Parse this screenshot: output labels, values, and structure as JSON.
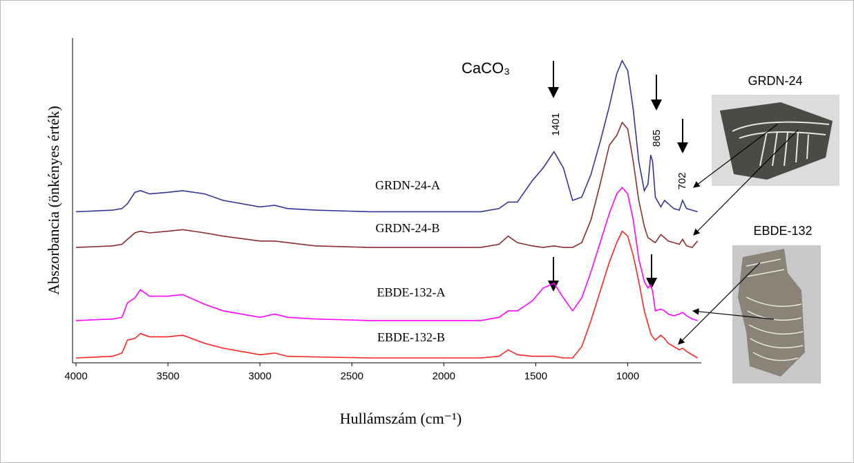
{
  "chart_data": {
    "type": "line",
    "annotation": "CaCO₃",
    "xlabel": "Hullámszám (cm⁻¹)",
    "ylabel": "Abszorbancia (önkényes érték)",
    "peak_labels": [
      "1401",
      "865",
      "702"
    ],
    "sample_labels": [
      "GRDN-24",
      "EBDE-132"
    ],
    "xlim": [
      4000,
      600
    ],
    "xticks": [
      4000,
      3500,
      3000,
      2500,
      2000,
      1500,
      1000
    ],
    "ylim": [
      0,
      10
    ],
    "x": [
      4000,
      3800,
      3750,
      3720,
      3680,
      3650,
      3600,
      3500,
      3420,
      3300,
      3200,
      3000,
      2920,
      2850,
      2700,
      2400,
      2000,
      1800,
      1700,
      1650,
      1600,
      1520,
      1460,
      1401,
      1350,
      1300,
      1250,
      1200,
      1150,
      1100,
      1060,
      1030,
      1000,
      970,
      940,
      910,
      890,
      875,
      865,
      850,
      820,
      800,
      780,
      750,
      720,
      702,
      680,
      650,
      620
    ],
    "series": [
      {
        "name": "GRDN-24-A",
        "color": "#333399",
        "values": [
          4.65,
          4.7,
          4.75,
          4.9,
          5.25,
          5.3,
          5.2,
          5.25,
          5.3,
          5.2,
          5.0,
          4.8,
          4.85,
          4.75,
          4.7,
          4.65,
          4.65,
          4.65,
          4.75,
          4.95,
          4.95,
          5.6,
          6.0,
          6.5,
          6.0,
          5.0,
          5.1,
          5.8,
          6.8,
          7.9,
          8.9,
          9.3,
          9.0,
          7.8,
          6.2,
          5.3,
          5.5,
          6.4,
          6.2,
          5.1,
          4.8,
          5.0,
          4.9,
          4.75,
          4.7,
          5.0,
          4.75,
          4.7,
          4.65
        ]
      },
      {
        "name": "GRDN-24-B",
        "color": "#8b2b2b",
        "values": [
          3.55,
          3.6,
          3.65,
          3.8,
          4.0,
          4.05,
          4.0,
          4.05,
          4.1,
          4.0,
          3.9,
          3.75,
          3.75,
          3.7,
          3.6,
          3.55,
          3.55,
          3.55,
          3.65,
          3.9,
          3.7,
          3.6,
          3.55,
          3.6,
          3.55,
          3.55,
          3.7,
          4.4,
          5.5,
          6.7,
          7.0,
          7.4,
          7.2,
          6.2,
          5.0,
          4.2,
          3.85,
          3.8,
          3.75,
          3.7,
          3.95,
          3.85,
          3.75,
          3.7,
          3.65,
          3.8,
          3.6,
          3.55,
          3.75
        ]
      },
      {
        "name": "EBDE-132-A",
        "color": "#ff00ff",
        "values": [
          1.3,
          1.35,
          1.4,
          1.85,
          2.0,
          2.25,
          2.05,
          2.05,
          2.1,
          1.8,
          1.6,
          1.4,
          1.5,
          1.4,
          1.35,
          1.3,
          1.3,
          1.3,
          1.4,
          1.6,
          1.6,
          1.9,
          2.3,
          2.45,
          2.0,
          1.6,
          2.0,
          2.8,
          3.7,
          4.6,
          5.2,
          5.4,
          5.2,
          4.4,
          3.2,
          2.5,
          2.3,
          2.4,
          2.2,
          1.6,
          1.65,
          1.6,
          1.5,
          1.45,
          1.5,
          1.55,
          1.45,
          1.35,
          1.3
        ]
      },
      {
        "name": "EBDE-132-B",
        "color": "#ff2222",
        "values": [
          0.15,
          0.2,
          0.3,
          0.7,
          0.75,
          0.9,
          0.8,
          0.8,
          0.85,
          0.6,
          0.45,
          0.25,
          0.3,
          0.2,
          0.18,
          0.15,
          0.15,
          0.15,
          0.2,
          0.4,
          0.25,
          0.2,
          0.2,
          0.2,
          0.15,
          0.15,
          0.5,
          1.3,
          2.2,
          3.1,
          3.7,
          4.05,
          3.9,
          3.3,
          2.5,
          1.6,
          1.2,
          0.9,
          0.8,
          0.7,
          0.85,
          0.75,
          0.6,
          0.5,
          0.4,
          0.45,
          0.35,
          0.25,
          0.15
        ]
      }
    ]
  }
}
